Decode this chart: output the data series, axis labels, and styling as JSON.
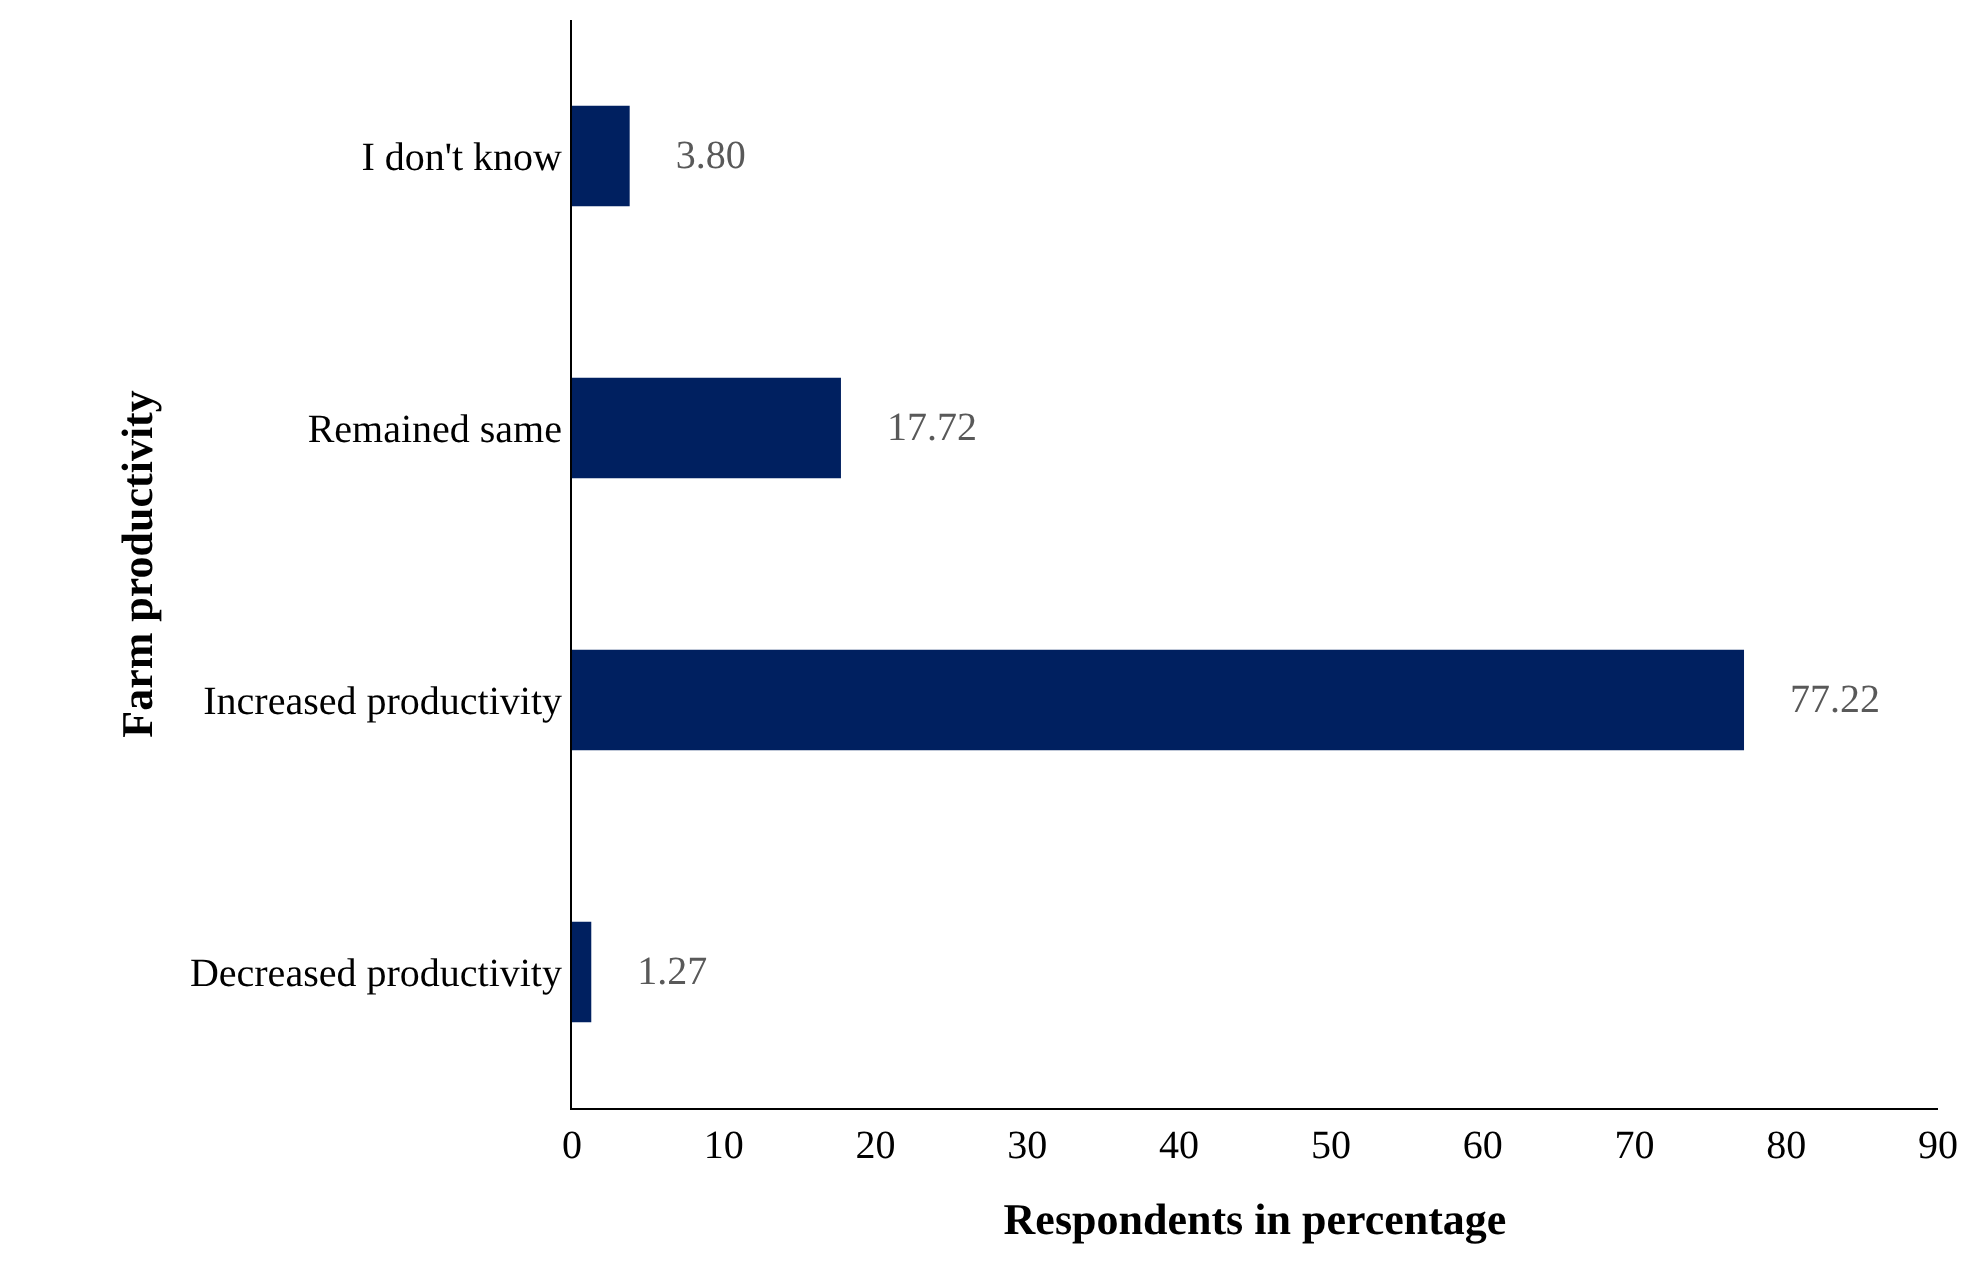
{
  "chart_data": {
    "type": "bar",
    "orientation": "horizontal",
    "xlabel": "Respondents in percentage",
    "ylabel": "Farm productivity",
    "categories": [
      "I don't know",
      "Remained same",
      "Increased productivity",
      "Decreased productivity"
    ],
    "values": [
      3.8,
      17.72,
      77.22,
      1.27
    ],
    "value_labels": [
      "3.80",
      "17.72",
      "77.22",
      "1.27"
    ],
    "color": "#002060",
    "xlim": [
      0,
      90
    ],
    "xticks": [
      0,
      10,
      20,
      30,
      40,
      50,
      60,
      70,
      80,
      90
    ],
    "grid": false
  }
}
